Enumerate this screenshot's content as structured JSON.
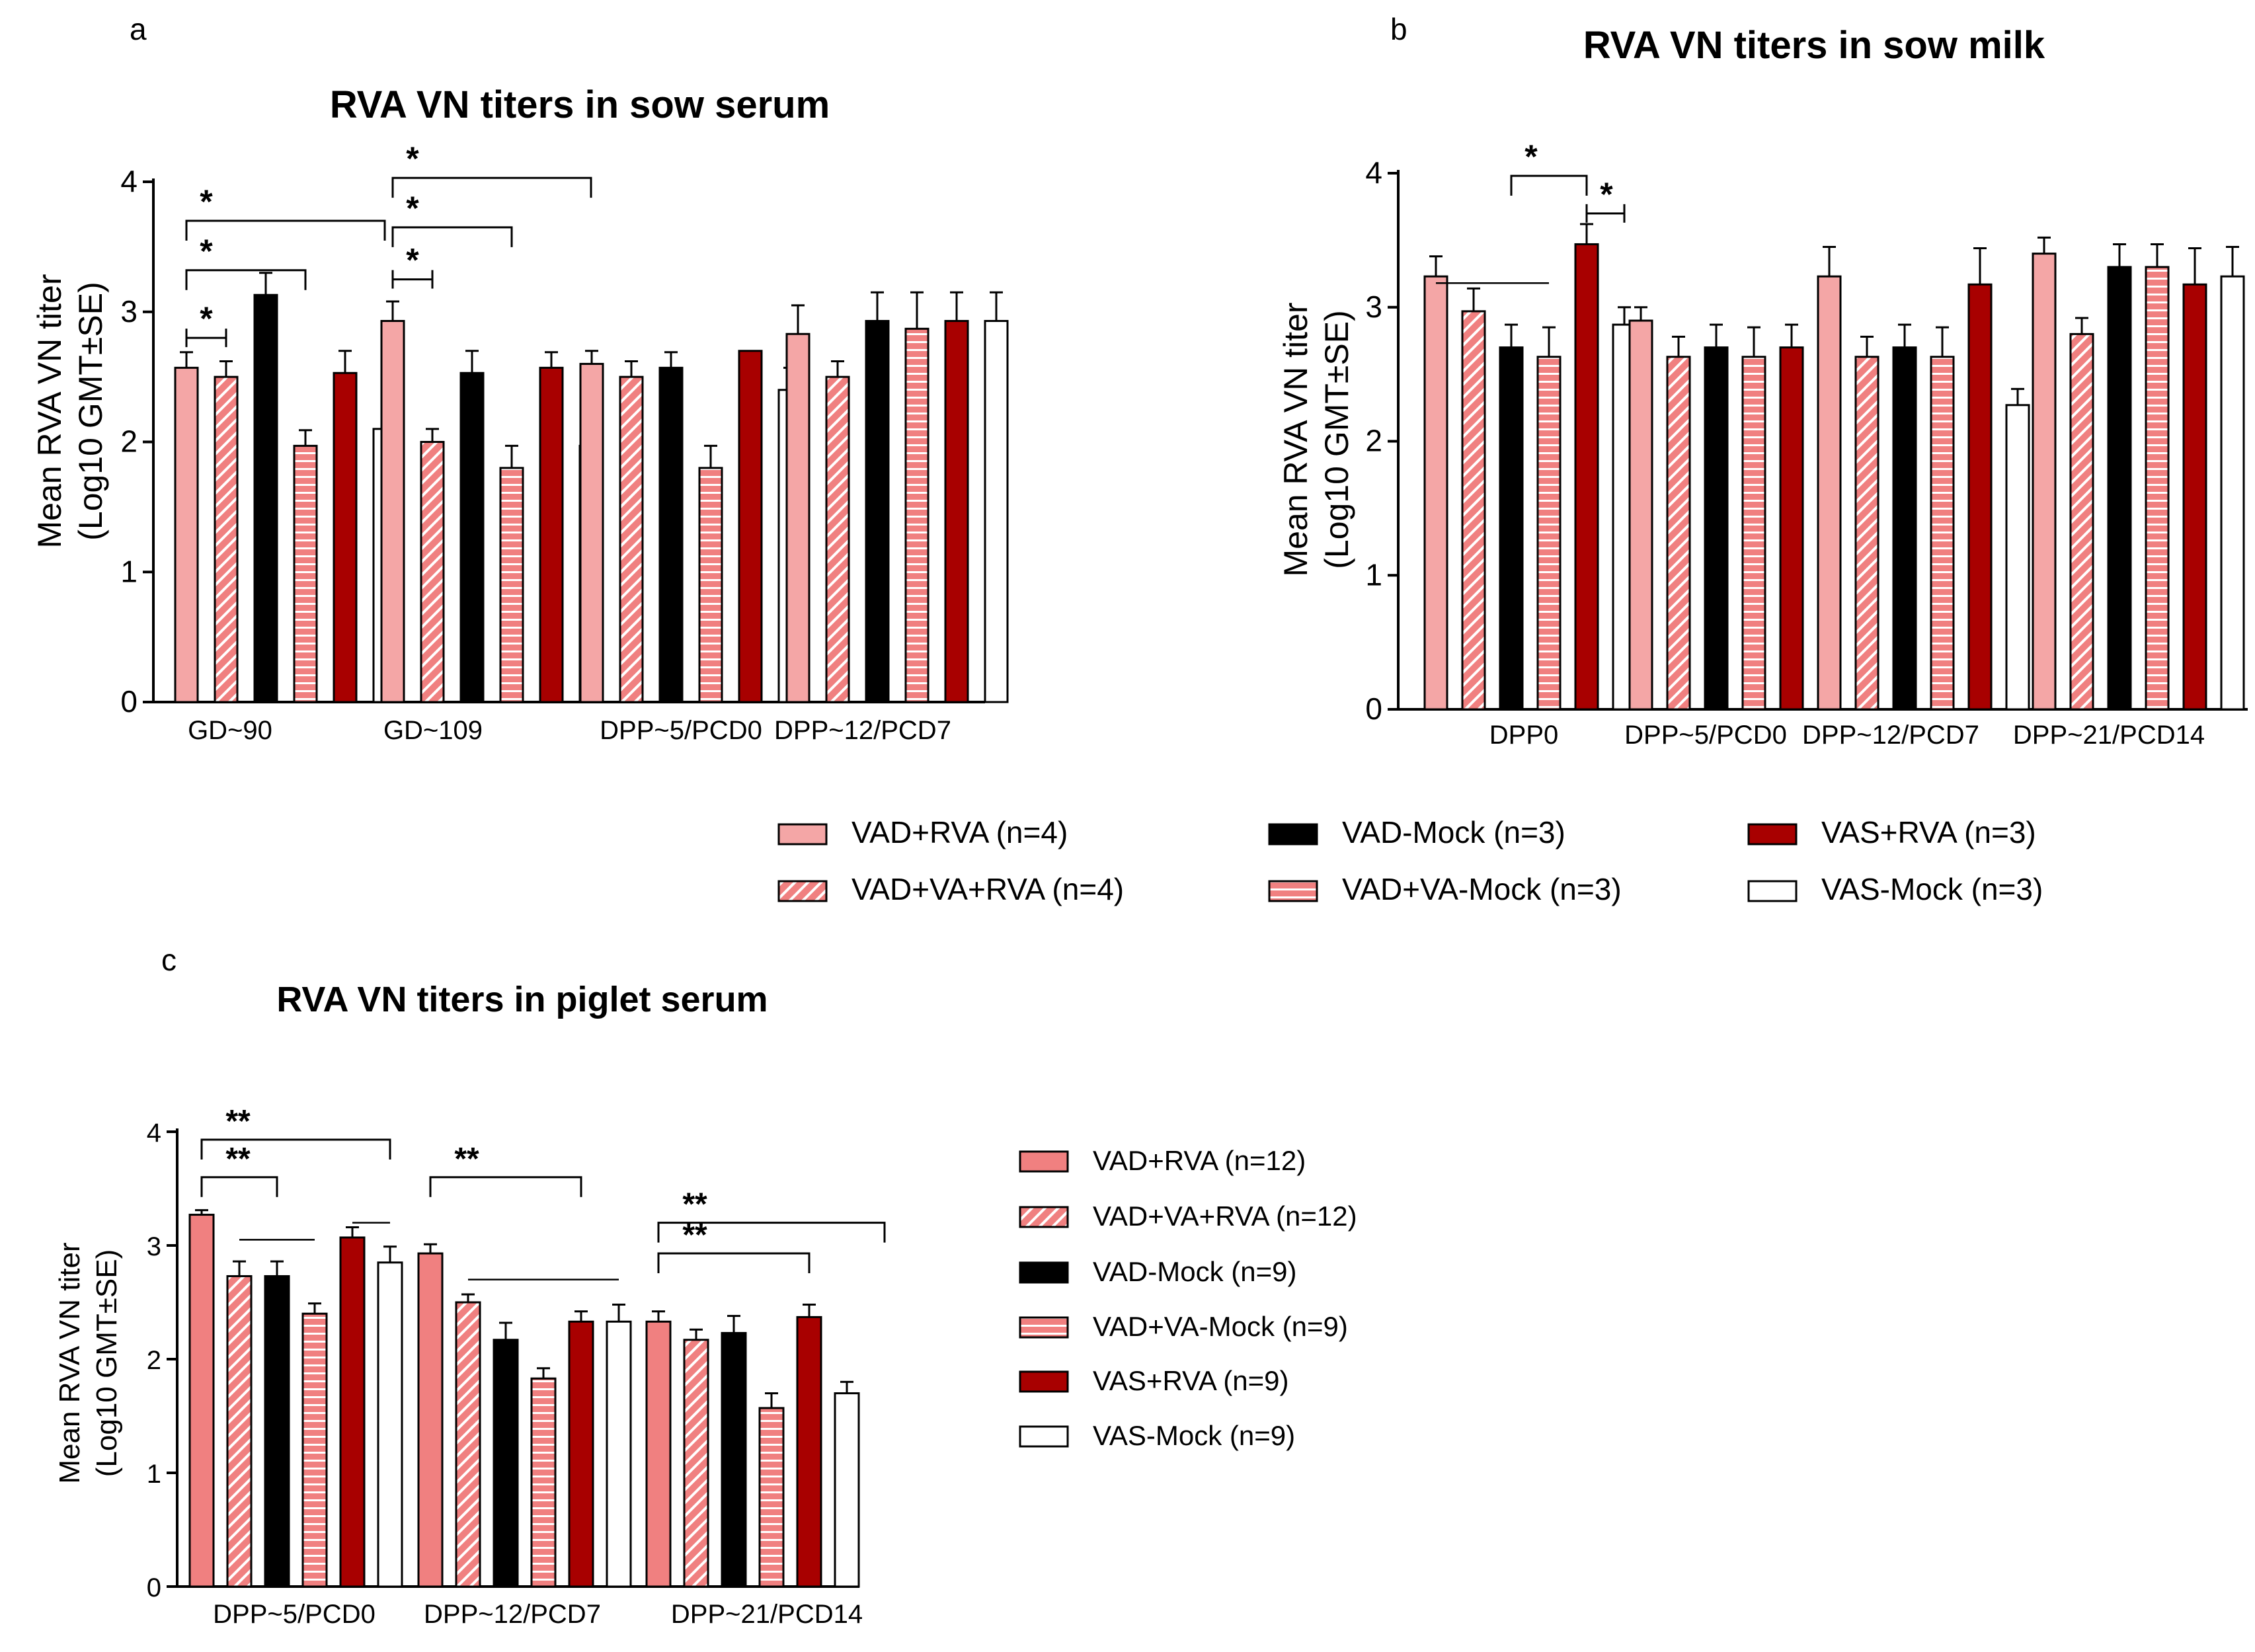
{
  "series_names": [
    "VAD+RVA",
    "VAD+VA+RVA",
    "VAD-Mock",
    "VAD+VA-Mock",
    "VAS+RVA",
    "VAS-Mock"
  ],
  "colors": {
    "salmon": "#f4a6a6",
    "pink": "#f08080",
    "black": "#000000",
    "darkred": "#a80000",
    "white": "#ffffff",
    "hatch": "#ffffff"
  },
  "legend_ab": [
    {
      "label": "VAD+RVA (n=4)",
      "style": "solid-salmon"
    },
    {
      "label": "VAD-Mock (n=3)",
      "style": "solid-black"
    },
    {
      "label": "VAS+RVA (n=3)",
      "style": "solid-darkred"
    },
    {
      "label": "VAD+VA+RVA (n=4)",
      "style": "diag"
    },
    {
      "label": "VAD+VA-Mock (n=3)",
      "style": "horiz"
    },
    {
      "label": "VAS-Mock (n=3)",
      "style": "white"
    }
  ],
  "legend_c": [
    {
      "label": "VAD+RVA (n=12)",
      "style": "solid-pink"
    },
    {
      "label": "VAD+VA+RVA (n=12)",
      "style": "diag"
    },
    {
      "label": "VAD-Mock (n=9)",
      "style": "solid-black"
    },
    {
      "label": "VAD+VA-Mock (n=9)",
      "style": "horiz"
    },
    {
      "label": "VAS+RVA (n=9)",
      "style": "solid-darkred"
    },
    {
      "label": "VAS-Mock (n=9)",
      "style": "white"
    }
  ],
  "chart_data": [
    {
      "panel_label": "a",
      "type": "bar",
      "title": "RVA VN titers in sow serum",
      "ylabel": [
        "Mean RVA VN titer",
        "(Log10 GMT±SE)"
      ],
      "ylim": [
        0,
        4
      ],
      "yticks": [
        "0",
        "1",
        "2",
        "3",
        "4"
      ],
      "categories": [
        "GD~90",
        "GD~109",
        "DPP~5/PCD0",
        "DPP~12/PCD7"
      ],
      "series": [
        {
          "name": "VAD+RVA",
          "style": "solid-salmon",
          "values": [
            2.57,
            2.93,
            2.6,
            2.83
          ],
          "errors": [
            0.12,
            0.15,
            0.1,
            0.22
          ]
        },
        {
          "name": "VAD+VA+RVA",
          "style": "diag",
          "values": [
            2.5,
            2.0,
            2.5,
            2.5
          ],
          "errors": [
            0.12,
            0.1,
            0.12,
            0.12
          ]
        },
        {
          "name": "VAD-Mock",
          "style": "solid-black",
          "values": [
            3.13,
            2.53,
            2.57,
            2.93
          ],
          "errors": [
            0.17,
            0.17,
            0.12,
            0.22
          ]
        },
        {
          "name": "VAD+VA-Mock",
          "style": "horiz",
          "values": [
            1.97,
            1.8,
            1.8,
            2.87
          ],
          "errors": [
            0.12,
            0.17,
            0.17,
            0.28
          ]
        },
        {
          "name": "VAS+RVA",
          "style": "solid-darkred",
          "values": [
            2.53,
            2.57,
            2.7,
            2.93
          ],
          "errors": [
            0.17,
            0.12,
            0.0,
            0.22
          ]
        },
        {
          "name": "VAS-Mock",
          "style": "white",
          "values": [
            2.1,
            1.97,
            2.4,
            2.93
          ],
          "errors": [
            0.0,
            0.12,
            0.17,
            0.22
          ]
        }
      ],
      "significance": [
        {
          "label": "*",
          "group": 0,
          "from": 0,
          "to": 1,
          "y": 2.8,
          "style": "cap"
        },
        {
          "label": "*",
          "group": 0,
          "from": 0,
          "to": 3,
          "y": 3.32,
          "style": "bracket"
        },
        {
          "label": "*",
          "group": 0,
          "from": 0,
          "to": 5,
          "y": 3.7,
          "style": "bracket"
        },
        {
          "label": "*",
          "group": 1,
          "from": 0,
          "to": 1,
          "y": 3.25,
          "style": "cap"
        },
        {
          "label": "*",
          "group": 1,
          "from": 0,
          "to": 3,
          "y": 3.65,
          "style": "bracket"
        },
        {
          "label": "*",
          "group": 1,
          "from": 0,
          "to": 5,
          "y": 4.03,
          "style": "bracket"
        }
      ]
    },
    {
      "panel_label": "b",
      "type": "bar",
      "title": "RVA VN titers in sow milk",
      "ylabel": [
        "Mean RVA VN titer",
        "(Log10 GMT±SE)"
      ],
      "ylim": [
        0,
        4
      ],
      "yticks": [
        "0",
        "1",
        "2",
        "3",
        "4"
      ],
      "categories": [
        "DPP0",
        "DPP~5/PCD0",
        "DPP~12/PCD7",
        "DPP~21/PCD14"
      ],
      "series": [
        {
          "name": "VAD+RVA",
          "style": "solid-salmon",
          "values": [
            3.23,
            2.9,
            3.23,
            3.4
          ],
          "errors": [
            0.15,
            0.1,
            0.22,
            0.12
          ]
        },
        {
          "name": "VAD+VA+RVA",
          "style": "diag",
          "values": [
            2.97,
            2.63,
            2.63,
            2.8
          ],
          "errors": [
            0.17,
            0.15,
            0.15,
            0.12
          ]
        },
        {
          "name": "VAD-Mock",
          "style": "solid-black",
          "values": [
            2.7,
            2.7,
            2.7,
            3.3
          ],
          "errors": [
            0.17,
            0.17,
            0.17,
            0.17
          ]
        },
        {
          "name": "VAD+VA-Mock",
          "style": "horiz",
          "values": [
            2.63,
            2.63,
            2.63,
            3.3
          ],
          "errors": [
            0.22,
            0.22,
            0.22,
            0.17
          ]
        },
        {
          "name": "VAS+RVA",
          "style": "solid-darkred",
          "values": [
            3.47,
            2.7,
            3.17,
            3.17
          ],
          "errors": [
            0.15,
            0.17,
            0.27,
            0.27
          ]
        },
        {
          "name": "VAS-Mock",
          "style": "white",
          "values": [
            2.87,
            2.27,
            2.27,
            3.23
          ],
          "errors": [
            0.13,
            0.12,
            0.12,
            0.22
          ]
        }
      ],
      "significance": [
        {
          "label": "*",
          "group": 0,
          "from": 2,
          "to": 4,
          "y": 3.98,
          "style": "bracket"
        },
        {
          "label": "*",
          "group": 0,
          "from": 4,
          "to": 5,
          "y": 3.7,
          "style": "cap"
        }
      ],
      "ns_lines": [
        {
          "group": 0,
          "from": 0,
          "to": 3,
          "y": 3.18
        }
      ]
    },
    {
      "panel_label": "c",
      "type": "bar",
      "title": "RVA VN titers in piglet serum",
      "ylabel": [
        "Mean RVA VN titer",
        "(Log10 GMT±SE)"
      ],
      "ylim": [
        0,
        4
      ],
      "yticks": [
        "0",
        "1",
        "2",
        "3",
        "4"
      ],
      "categories": [
        "DPP~5/PCD0",
        "DPP~12/PCD7",
        "DPP~21/PCD14"
      ],
      "series": [
        {
          "name": "VAD+RVA",
          "style": "solid-pink",
          "values": [
            3.27,
            2.93,
            2.33
          ],
          "errors": [
            0.04,
            0.08,
            0.09
          ]
        },
        {
          "name": "VAD+VA+RVA",
          "style": "diag",
          "values": [
            2.73,
            2.5,
            2.17
          ],
          "errors": [
            0.13,
            0.07,
            0.09
          ]
        },
        {
          "name": "VAD-Mock",
          "style": "solid-black",
          "values": [
            2.73,
            2.17,
            2.23
          ],
          "errors": [
            0.13,
            0.15,
            0.15
          ]
        },
        {
          "name": "VAD+VA-Mock",
          "style": "horiz",
          "values": [
            2.4,
            1.83,
            1.57
          ],
          "errors": [
            0.09,
            0.09,
            0.13
          ]
        },
        {
          "name": "VAS+RVA",
          "style": "solid-darkred",
          "values": [
            3.07,
            2.33,
            2.37
          ],
          "errors": [
            0.09,
            0.09,
            0.11
          ]
        },
        {
          "name": "VAS-Mock",
          "style": "white",
          "values": [
            2.85,
            2.33,
            1.7
          ],
          "errors": [
            0.14,
            0.15,
            0.1
          ]
        }
      ],
      "significance": [
        {
          "label": "**",
          "group": 0,
          "from": 0,
          "to": 2,
          "y": 3.6,
          "style": "bracket"
        },
        {
          "label": "**",
          "group": 0,
          "from": 0,
          "to": 5,
          "y": 3.93,
          "style": "bracket"
        },
        {
          "label": "**",
          "group": 1,
          "from": 0,
          "to": 4,
          "y": 3.6,
          "style": "bracket"
        },
        {
          "label": "**",
          "group": 2,
          "from": 0,
          "to": 4,
          "y": 2.93,
          "style": "bracket"
        },
        {
          "label": "**",
          "group": 2,
          "from": 0,
          "to": 6,
          "y": 3.2,
          "style": "bracket"
        }
      ],
      "ns_lines": [
        {
          "group": 0,
          "from": 1,
          "to": 3,
          "y": 3.05
        },
        {
          "group": 0,
          "from": 4,
          "to": 5,
          "y": 3.2
        },
        {
          "group": 1,
          "from": 1,
          "to": 5,
          "y": 2.7
        }
      ]
    }
  ]
}
